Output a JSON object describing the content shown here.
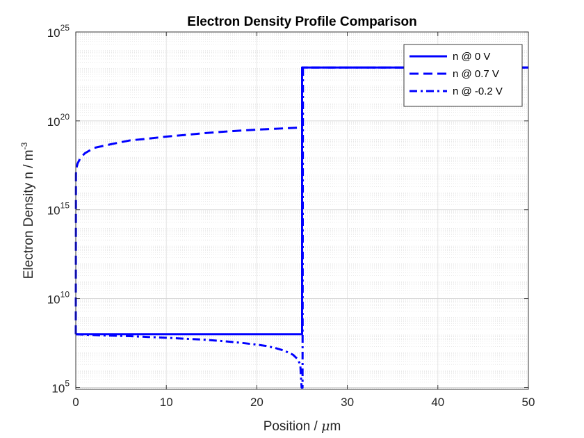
{
  "chart_data": {
    "type": "line",
    "title": "Electron Density Profile Comparison",
    "xlabel": "Position / μm",
    "ylabel": "Electron Density n / m",
    "ylabel_exponent": "-3",
    "xlim": [
      0,
      50
    ],
    "ylim_exponent": [
      4.9,
      25
    ],
    "y_scale": "log",
    "grid": true,
    "minor_grid": true,
    "legend_position": "top-right",
    "x_ticks": [
      "0",
      "10",
      "20",
      "30",
      "40",
      "50"
    ],
    "y_ticks": [
      {
        "base": "10",
        "exp": "5"
      },
      {
        "base": "10",
        "exp": "10"
      },
      {
        "base": "10",
        "exp": "15"
      },
      {
        "base": "10",
        "exp": "20"
      },
      {
        "base": "10",
        "exp": "25"
      }
    ],
    "series": [
      {
        "name": "n @ 0 V",
        "style": "solid",
        "color": "#0000ff",
        "points": [
          [
            0,
            100000000.0
          ],
          [
            25,
            100000000.0
          ],
          [
            25,
            1e+23
          ],
          [
            50,
            1e+23
          ]
        ]
      },
      {
        "name": "n @ 0.7 V",
        "style": "dashed",
        "color": "#0000ff",
        "points": [
          [
            0,
            100000000.0
          ],
          [
            0.02,
            1e+17
          ],
          [
            0.05,
            2e+17
          ],
          [
            0.2,
            4e+17
          ],
          [
            0.5,
            8e+17
          ],
          [
            1,
            1.5e+18
          ],
          [
            2,
            3e+18
          ],
          [
            4,
            5e+18
          ],
          [
            6,
            8e+18
          ],
          [
            8,
            1e+19
          ],
          [
            10,
            1.3e+19
          ],
          [
            12,
            1.6e+19
          ],
          [
            14,
            2e+19
          ],
          [
            16,
            2.4e+19
          ],
          [
            18,
            2.8e+19
          ],
          [
            20,
            3.2e+19
          ],
          [
            22,
            3.6e+19
          ],
          [
            24,
            4e+19
          ],
          [
            25,
            4.2e+19
          ],
          [
            25,
            1e+23
          ],
          [
            50,
            1e+23
          ]
        ]
      },
      {
        "name": "n @ -0.2 V",
        "style": "dashdot",
        "color": "#0000ff",
        "points": [
          [
            0,
            100000000.0
          ],
          [
            2,
            90000000.0
          ],
          [
            4,
            83000000.0
          ],
          [
            6,
            78000000.0
          ],
          [
            8,
            70000000.0
          ],
          [
            10,
            63000000.0
          ],
          [
            12,
            56000000.0
          ],
          [
            14,
            50000000.0
          ],
          [
            16,
            42000000.0
          ],
          [
            18,
            34000000.0
          ],
          [
            20,
            26000000.0
          ],
          [
            21,
            22000000.0
          ],
          [
            22,
            17000000.0
          ],
          [
            23,
            12000000.0
          ],
          [
            24,
            7000000.0
          ],
          [
            24.5,
            4000000.0
          ],
          [
            24.8,
            2000000.0
          ],
          [
            24.95,
            100000.0
          ],
          [
            25.05,
            100000.0
          ],
          [
            25.1,
            1e+23
          ],
          [
            50,
            1e+23
          ]
        ]
      }
    ]
  }
}
